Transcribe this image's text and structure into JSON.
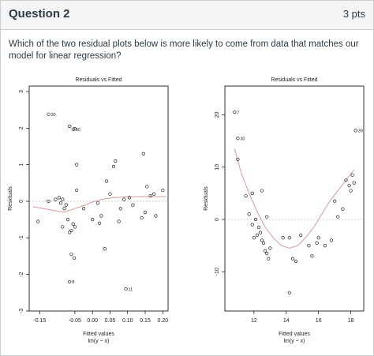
{
  "question": {
    "title": "Question 2",
    "points": "3 pts",
    "text": "Which of the two residual plots below is more likely to come from data that matches our model for linear regression?"
  },
  "chart_data": [
    {
      "type": "scatter",
      "title": "Residuals vs Fitted",
      "xlabel": "Fitted values",
      "xlabel2": "lm(y ~ x)",
      "ylabel": "Residuals",
      "xlim": [
        -0.18,
        0.215
      ],
      "ylim": [
        -3.0,
        3.15
      ],
      "xticks": [
        -0.15,
        -0.05,
        0.0,
        0.05,
        0.1,
        0.15,
        0.2
      ],
      "xtick_labels": [
        "-0.15",
        "-0.05",
        "0.00",
        "0.05",
        "0.10",
        "0.15",
        "0.20"
      ],
      "yticks": [
        -3,
        -2,
        -1,
        0,
        1,
        2,
        3
      ],
      "ytick_labels": [
        "-3",
        "-2",
        "-1",
        "0",
        "1",
        "2",
        "3"
      ],
      "points": [
        {
          "x": -0.125,
          "y": 2.38,
          "label": "30"
        },
        {
          "x": -0.065,
          "y": 2.05
        },
        {
          "x": -0.055,
          "y": 1.97,
          "label": "90"
        },
        {
          "x": -0.05,
          "y": 1.98
        },
        {
          "x": -0.045,
          "y": 1.0
        },
        {
          "x": -0.155,
          "y": -0.55
        },
        {
          "x": -0.125,
          "y": 0.0
        },
        {
          "x": -0.105,
          "y": 0.05
        },
        {
          "x": -0.095,
          "y": 0.1
        },
        {
          "x": -0.09,
          "y": -0.05
        },
        {
          "x": -0.085,
          "y": 0.05
        },
        {
          "x": -0.08,
          "y": -0.2
        },
        {
          "x": -0.075,
          "y": -0.1
        },
        {
          "x": -0.07,
          "y": -0.5
        },
        {
          "x": -0.065,
          "y": -0.85
        },
        {
          "x": -0.06,
          "y": -0.8
        },
        {
          "x": -0.055,
          "y": -0.62
        },
        {
          "x": -0.05,
          "y": -0.7
        },
        {
          "x": -0.045,
          "y": 0.3
        },
        {
          "x": -0.085,
          "y": -0.7
        },
        {
          "x": -0.06,
          "y": -1.45
        },
        {
          "x": -0.052,
          "y": -1.55
        },
        {
          "x": -0.065,
          "y": -2.2,
          "label": "8"
        },
        {
          "x": -0.025,
          "y": -0.2
        },
        {
          "x": 0.0,
          "y": -0.5
        },
        {
          "x": 0.015,
          "y": -0.05
        },
        {
          "x": 0.02,
          "y": -0.6
        },
        {
          "x": 0.025,
          "y": -0.4
        },
        {
          "x": 0.035,
          "y": -1.3
        },
        {
          "x": 0.04,
          "y": 0.55
        },
        {
          "x": 0.05,
          "y": 0.2
        },
        {
          "x": 0.06,
          "y": 0.95
        },
        {
          "x": 0.065,
          "y": 1.1
        },
        {
          "x": 0.075,
          "y": -0.55
        },
        {
          "x": 0.08,
          "y": -0.2
        },
        {
          "x": 0.09,
          "y": 0.05
        },
        {
          "x": 0.105,
          "y": 0.1
        },
        {
          "x": 0.115,
          "y": -0.1
        },
        {
          "x": 0.14,
          "y": -0.45
        },
        {
          "x": 0.145,
          "y": 1.3
        },
        {
          "x": 0.15,
          "y": -0.3
        },
        {
          "x": 0.155,
          "y": 0.4
        },
        {
          "x": 0.165,
          "y": 0.15
        },
        {
          "x": 0.18,
          "y": -0.4
        },
        {
          "x": 0.175,
          "y": 0.2
        },
        {
          "x": 0.2,
          "y": 0.3
        },
        {
          "x": 0.095,
          "y": -2.4,
          "label": "11"
        }
      ],
      "smooth_line": {
        "color": "#d89a9a",
        "x": [
          -0.17,
          -0.14,
          -0.11,
          -0.08,
          -0.05,
          -0.02,
          0.0,
          0.03,
          0.06,
          0.1,
          0.14,
          0.18,
          0.21
        ],
        "y": [
          -0.15,
          -0.2,
          -0.25,
          -0.3,
          -0.2,
          -0.1,
          -0.02,
          0.06,
          0.1,
          0.12,
          0.13,
          0.12,
          0.13
        ]
      }
    },
    {
      "type": "scatter",
      "title": "Residuals vs Fitted",
      "xlabel": "Fitted values",
      "xlabel2": "lm(y ~ x)",
      "ylabel": "Residuals",
      "xlim": [
        10.2,
        18.8
      ],
      "ylim": [
        -17.5,
        25.5
      ],
      "xticks": [
        12,
        14,
        16,
        18
      ],
      "xtick_labels": [
        "12",
        "14",
        "16",
        "18"
      ],
      "yticks": [
        -10,
        0,
        10,
        20
      ],
      "ytick_labels": [
        "-10",
        "0",
        "10",
        "20"
      ],
      "points": [
        {
          "x": 10.8,
          "y": 20.5,
          "label": "7"
        },
        {
          "x": 11.0,
          "y": 15.5,
          "label": "30"
        },
        {
          "x": 18.3,
          "y": 17.0,
          "label": "39"
        },
        {
          "x": 11.0,
          "y": 11.5
        },
        {
          "x": 11.5,
          "y": 4.5
        },
        {
          "x": 11.9,
          "y": 5.0
        },
        {
          "x": 12.5,
          "y": 5.5
        },
        {
          "x": 11.7,
          "y": 1.0
        },
        {
          "x": 11.9,
          "y": -1.0
        },
        {
          "x": 12.0,
          "y": -3.5
        },
        {
          "x": 12.1,
          "y": 0.0
        },
        {
          "x": 12.2,
          "y": -3.0
        },
        {
          "x": 12.3,
          "y": -1.5
        },
        {
          "x": 12.4,
          "y": -2.5
        },
        {
          "x": 12.5,
          "y": -4.0
        },
        {
          "x": 12.6,
          "y": -4.5
        },
        {
          "x": 12.7,
          "y": -6.0
        },
        {
          "x": 12.8,
          "y": -6.5
        },
        {
          "x": 12.9,
          "y": -7.5
        },
        {
          "x": 13.0,
          "y": -5.5
        },
        {
          "x": 12.8,
          "y": 0.5
        },
        {
          "x": 13.8,
          "y": -3.5
        },
        {
          "x": 14.2,
          "y": -3.5
        },
        {
          "x": 14.4,
          "y": -7.5
        },
        {
          "x": 14.6,
          "y": -8.0
        },
        {
          "x": 14.2,
          "y": -14.0
        },
        {
          "x": 14.9,
          "y": -3.0
        },
        {
          "x": 15.4,
          "y": -5.0
        },
        {
          "x": 15.6,
          "y": -7.0
        },
        {
          "x": 15.9,
          "y": -4.5
        },
        {
          "x": 16.0,
          "y": -3.5
        },
        {
          "x": 16.4,
          "y": -5.0
        },
        {
          "x": 16.8,
          "y": -4.0
        },
        {
          "x": 17.2,
          "y": 0.5
        },
        {
          "x": 17.5,
          "y": 2.0
        },
        {
          "x": 17.7,
          "y": 7.5
        },
        {
          "x": 17.9,
          "y": 6.5
        },
        {
          "x": 18.0,
          "y": 5.5
        },
        {
          "x": 18.1,
          "y": 8.5
        },
        {
          "x": 18.2,
          "y": 7.0
        },
        {
          "x": 17.0,
          "y": 3.5
        }
      ],
      "smooth_line": {
        "color": "#d89a9a",
        "x": [
          10.8,
          11.2,
          11.7,
          12.2,
          12.7,
          13.2,
          13.7,
          14.2,
          14.7,
          15.2,
          15.7,
          16.2,
          16.7,
          17.2,
          17.7,
          18.2
        ],
        "y": [
          13.5,
          9.0,
          5.0,
          1.5,
          -1.5,
          -3.5,
          -5.0,
          -5.5,
          -5.0,
          -3.5,
          -1.5,
          1.0,
          3.5,
          5.5,
          7.5,
          9.5
        ]
      }
    }
  ]
}
